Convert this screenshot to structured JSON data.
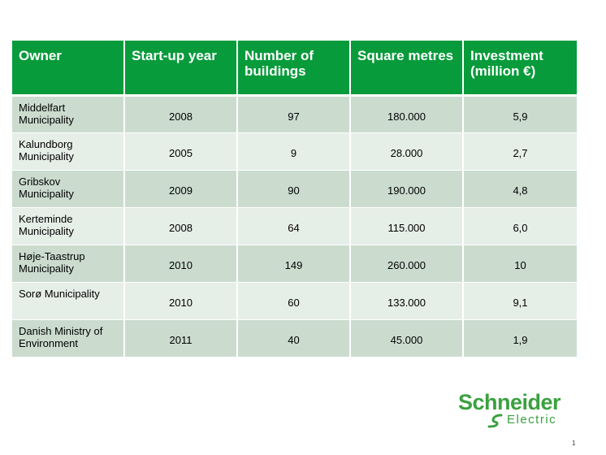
{
  "table": {
    "headers": [
      "Owner",
      "Start-up year",
      "Number of buildings",
      "Square metres",
      "Investment (million €)"
    ],
    "rows": [
      [
        "Middelfart Municipality",
        "2008",
        "97",
        "180.000",
        "5,9"
      ],
      [
        "Kalundborg Municipality",
        "2005",
        "9",
        "28.000",
        "2,7"
      ],
      [
        "Gribskov Municipality",
        "2009",
        "90",
        "190.000",
        "4,8"
      ],
      [
        "Kerteminde Municipality",
        "2008",
        "64",
        "115.000",
        "6,0"
      ],
      [
        "Høje-Taastrup Municipality",
        "2010",
        "149",
        "260.000",
        "10"
      ],
      [
        "Sorø Municipality",
        "2010",
        "60",
        "133.000",
        "9,1"
      ],
      [
        "Danish Ministry of Environment",
        "2011",
        "40",
        "45.000",
        "1,9"
      ]
    ]
  },
  "logo": {
    "name": "Schneider",
    "sub": "Electric",
    "color": "#3aa13f",
    "icon": "schneider-logo-icon"
  },
  "page_number": "1",
  "colors": {
    "header": "#089b3b",
    "row_odd": "#cbdccf",
    "row_even": "#e6eee8"
  }
}
